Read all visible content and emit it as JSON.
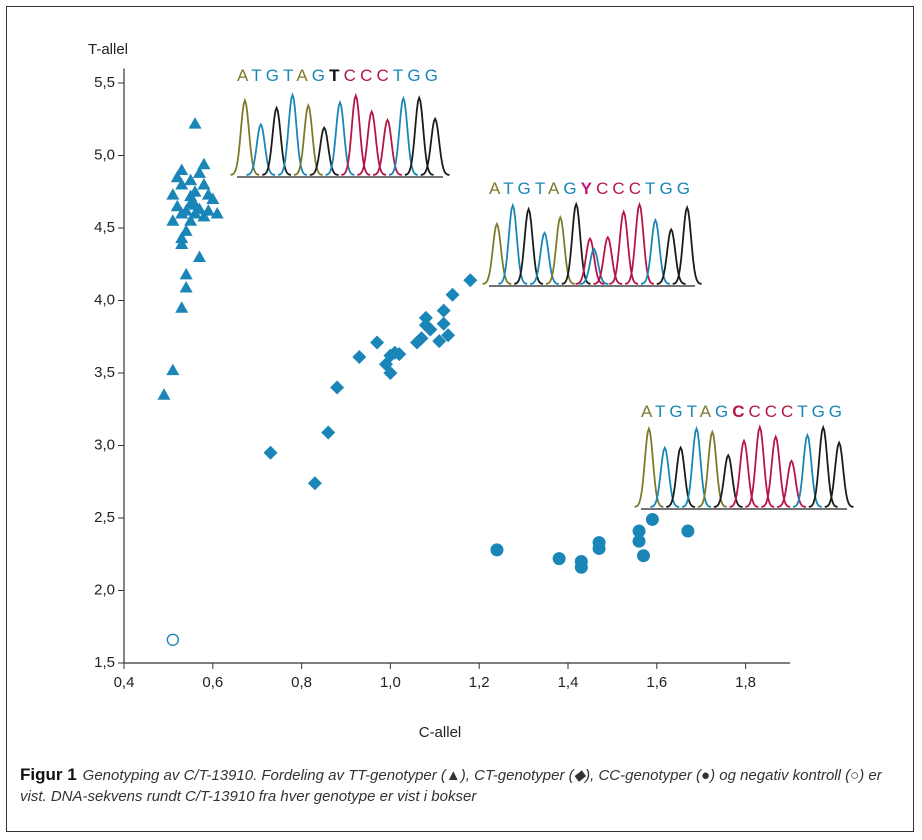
{
  "chart_data": {
    "type": "scatter",
    "x_label": "C-allel",
    "y_label": "T-allel",
    "xlim": [
      0.4,
      1.9
    ],
    "xticks": [
      {
        "value": 0.4,
        "label": "0,4"
      },
      {
        "value": 0.6,
        "label": "0,6"
      },
      {
        "value": 0.8,
        "label": "0,8"
      },
      {
        "value": 1.0,
        "label": "1,0"
      },
      {
        "value": 1.2,
        "label": "1,2"
      },
      {
        "value": 1.4,
        "label": "1,4"
      },
      {
        "value": 1.6,
        "label": "1,6"
      },
      {
        "value": 1.8,
        "label": "1,8"
      }
    ],
    "ylim": [
      1.5,
      5.6
    ],
    "yticks": [
      {
        "value": 1.5,
        "label": "1,5"
      },
      {
        "value": 2.0,
        "label": "2,0"
      },
      {
        "value": 2.5,
        "label": "2,5"
      },
      {
        "value": 3.0,
        "label": "3,0"
      },
      {
        "value": 3.5,
        "label": "3,5"
      },
      {
        "value": 4.0,
        "label": "4,0"
      },
      {
        "value": 4.5,
        "label": "4,5"
      },
      {
        "value": 5.0,
        "label": "5,0"
      },
      {
        "value": 5.5,
        "label": "5,5"
      }
    ],
    "series": [
      {
        "marker": "triangle",
        "color": "#1a86b8",
        "x": [
          0.49,
          0.51,
          0.53,
          0.54,
          0.54,
          0.53,
          0.53,
          0.51,
          0.52,
          0.51,
          0.53,
          0.53,
          0.52,
          0.55,
          0.54,
          0.54,
          0.55,
          0.56,
          0.56,
          0.55,
          0.57,
          0.58,
          0.56,
          0.57,
          0.58,
          0.59,
          0.6,
          0.58,
          0.59,
          0.61,
          0.57,
          0.56,
          0.55,
          0.53
        ],
        "values": [
          3.35,
          3.52,
          3.95,
          4.09,
          4.18,
          4.39,
          4.43,
          4.55,
          4.65,
          4.73,
          4.8,
          4.9,
          4.85,
          4.72,
          4.62,
          4.48,
          4.55,
          4.6,
          4.75,
          4.83,
          4.88,
          4.94,
          4.66,
          4.63,
          4.8,
          4.73,
          4.7,
          4.58,
          4.62,
          4.6,
          4.3,
          5.22,
          4.67,
          4.6
        ]
      },
      {
        "marker": "diamond",
        "color": "#1a86b8",
        "x": [
          0.73,
          0.83,
          0.86,
          0.88,
          0.93,
          0.97,
          0.99,
          1.0,
          1.0,
          1.01,
          1.02,
          1.06,
          1.07,
          1.08,
          1.09,
          1.11,
          1.12,
          1.12,
          1.13,
          1.14,
          1.18,
          1.08
        ],
        "values": [
          2.95,
          2.74,
          3.09,
          3.4,
          3.61,
          3.71,
          3.56,
          3.5,
          3.62,
          3.64,
          3.63,
          3.71,
          3.74,
          3.83,
          3.8,
          3.72,
          3.84,
          3.93,
          3.76,
          4.04,
          4.14,
          3.88
        ]
      },
      {
        "marker": "circle",
        "color": "#1a86b8",
        "x": [
          1.24,
          1.38,
          1.43,
          1.43,
          1.47,
          1.47,
          1.56,
          1.56,
          1.57,
          1.59,
          1.67
        ],
        "values": [
          2.28,
          2.22,
          2.2,
          2.16,
          2.33,
          2.29,
          2.41,
          2.34,
          2.24,
          2.49,
          2.41
        ]
      },
      {
        "marker": "open-circle",
        "color": "#1a86b8",
        "x": [
          0.51
        ],
        "values": [
          1.66
        ]
      }
    ],
    "sequences": [
      "ATGTAGTCCCTGG",
      "ATGTAGYCCCTGG",
      "ATGTAGCCCCTGG"
    ]
  },
  "caption": {
    "label": "Figur 1",
    "text": "Genotyping av C/T-13910. Fordeling av TT-genotyper (▲), CT-genotyper (◆), CC-genotyper (●) og negativ kontroll (○) er vist. DNA-sekvens rundt C/T-13910 fra hver genotype er vist i bokser"
  }
}
